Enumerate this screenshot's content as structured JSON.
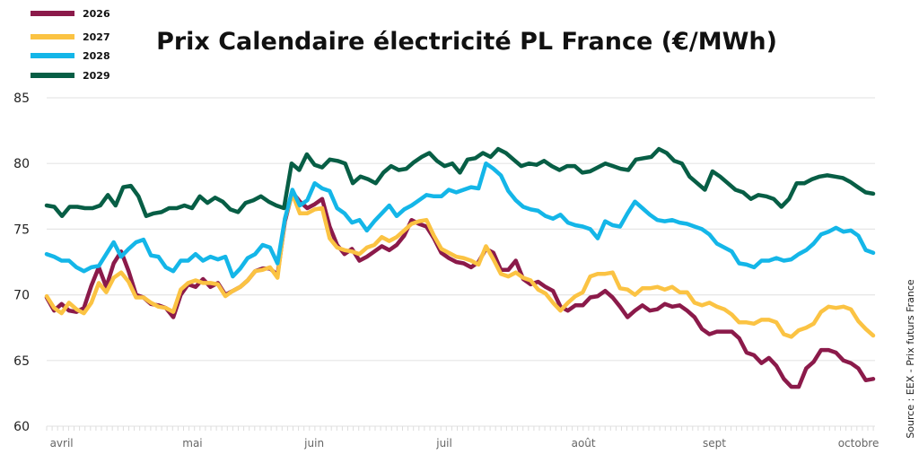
{
  "chart_data": {
    "type": "line",
    "title": "Prix Calendaire électricité PL France (€/MWh)",
    "xlabel": "",
    "ylabel": "",
    "ylim": [
      60,
      85
    ],
    "yticks": [
      60,
      65,
      70,
      75,
      80,
      85
    ],
    "ytick_labels": [
      "60",
      "65",
      "70",
      "75",
      "80",
      "85"
    ],
    "xtick_labels": [
      "avril",
      "mai",
      "juin",
      "juil",
      "août",
      "sept",
      "octobre"
    ],
    "xtick_positions": [
      0.018,
      0.176,
      0.323,
      0.48,
      0.648,
      0.806,
      0.98
    ],
    "grid": true,
    "legend_position": "top-left",
    "source": "Source : EEX - Prix futurs France",
    "series": [
      {
        "name": "2026",
        "color": "#8B1A4A",
        "values": [
          69.8,
          68.8,
          69.3,
          68.8,
          68.7,
          69.0,
          70.7,
          72.1,
          70.6,
          72.4,
          73.3,
          71.8,
          70.0,
          69.8,
          69.3,
          69.2,
          69.0,
          68.3,
          70.0,
          70.8,
          70.6,
          71.2,
          70.6,
          70.9,
          70.0,
          70.3,
          70.6,
          71.1,
          71.8,
          72.0,
          72.0,
          71.5,
          75.6,
          77.8,
          77.1,
          76.6,
          76.9,
          77.3,
          75.2,
          73.8,
          73.1,
          73.5,
          72.6,
          72.9,
          73.3,
          73.7,
          73.4,
          73.8,
          74.5,
          75.7,
          75.4,
          75.2,
          74.3,
          73.2,
          72.8,
          72.5,
          72.4,
          72.1,
          72.5,
          73.5,
          73.2,
          71.9,
          71.9,
          72.6,
          71.2,
          70.8,
          71.0,
          70.6,
          70.3,
          69.1,
          68.8,
          69.2,
          69.2,
          69.8,
          69.9,
          70.3,
          69.8,
          69.1,
          68.3,
          68.8,
          69.2,
          68.8,
          68.9,
          69.3,
          69.1,
          69.2,
          68.8,
          68.3,
          67.4,
          67.0,
          67.2,
          67.2,
          67.2,
          66.7,
          65.6,
          65.4,
          64.8,
          65.2,
          64.6,
          63.6,
          63.0,
          63.0,
          64.4,
          64.9,
          65.8,
          65.8,
          65.6,
          65.0,
          64.8,
          64.4,
          63.5,
          63.6
        ]
      },
      {
        "name": "2027",
        "color": "#FBC343",
        "values": [
          69.9,
          69.0,
          68.6,
          69.4,
          68.9,
          68.6,
          69.4,
          70.9,
          70.2,
          71.3,
          71.7,
          71.0,
          69.8,
          69.8,
          69.4,
          69.1,
          69.0,
          68.7,
          70.4,
          70.9,
          71.1,
          70.9,
          70.9,
          70.8,
          69.9,
          70.3,
          70.6,
          71.1,
          71.8,
          71.9,
          72.1,
          71.3,
          75.8,
          77.7,
          76.2,
          76.2,
          76.5,
          76.6,
          74.3,
          73.6,
          73.4,
          73.3,
          73.1,
          73.6,
          73.8,
          74.4,
          74.1,
          74.4,
          74.9,
          75.4,
          75.6,
          75.7,
          74.5,
          73.5,
          73.2,
          72.9,
          72.8,
          72.6,
          72.3,
          73.7,
          72.7,
          71.6,
          71.4,
          71.7,
          71.3,
          71.1,
          70.4,
          70.1,
          69.4,
          68.8,
          69.4,
          69.9,
          70.2,
          71.4,
          71.6,
          71.6,
          71.7,
          70.5,
          70.4,
          70.0,
          70.5,
          70.5,
          70.6,
          70.4,
          70.6,
          70.2,
          70.2,
          69.4,
          69.2,
          69.4,
          69.1,
          68.9,
          68.5,
          67.9,
          67.9,
          67.8,
          68.1,
          68.1,
          67.9,
          67.0,
          66.8,
          67.3,
          67.5,
          67.8,
          68.7,
          69.1,
          69.0,
          69.1,
          68.9,
          68.0,
          67.4,
          66.9
        ]
      },
      {
        "name": "2028",
        "color": "#14B6E8",
        "values": [
          73.1,
          72.9,
          72.6,
          72.6,
          72.1,
          71.8,
          72.1,
          72.2,
          73.1,
          74.0,
          72.9,
          73.5,
          74.0,
          74.2,
          73.0,
          72.9,
          72.1,
          71.8,
          72.6,
          72.6,
          73.1,
          72.6,
          72.9,
          72.7,
          72.9,
          71.4,
          72.0,
          72.8,
          73.1,
          73.8,
          73.6,
          72.4,
          75.8,
          78.0,
          76.8,
          77.2,
          78.5,
          78.1,
          77.9,
          76.6,
          76.2,
          75.5,
          75.7,
          74.9,
          75.6,
          76.2,
          76.8,
          76.0,
          76.5,
          76.8,
          77.2,
          77.6,
          77.5,
          77.5,
          78.0,
          77.8,
          78.0,
          78.2,
          78.1,
          80.0,
          79.6,
          79.1,
          77.9,
          77.2,
          76.7,
          76.5,
          76.4,
          76.0,
          75.8,
          76.1,
          75.5,
          75.3,
          75.2,
          75.0,
          74.3,
          75.6,
          75.3,
          75.2,
          76.2,
          77.1,
          76.6,
          76.1,
          75.7,
          75.6,
          75.7,
          75.5,
          75.4,
          75.2,
          75.0,
          74.6,
          73.9,
          73.6,
          73.3,
          72.4,
          72.3,
          72.1,
          72.6,
          72.6,
          72.8,
          72.6,
          72.7,
          73.1,
          73.4,
          73.9,
          74.6,
          74.8,
          75.1,
          74.8,
          74.9,
          74.5,
          73.4,
          73.2
        ]
      },
      {
        "name": "2029",
        "color": "#075E45",
        "values": [
          76.8,
          76.7,
          76.0,
          76.7,
          76.7,
          76.6,
          76.6,
          76.8,
          77.6,
          76.8,
          78.2,
          78.3,
          77.5,
          76.0,
          76.2,
          76.3,
          76.6,
          76.6,
          76.8,
          76.6,
          77.5,
          77.0,
          77.4,
          77.1,
          76.5,
          76.3,
          77.0,
          77.2,
          77.5,
          77.1,
          76.8,
          76.6,
          80.0,
          79.5,
          80.7,
          79.9,
          79.7,
          80.3,
          80.2,
          80.0,
          78.5,
          79.0,
          78.8,
          78.5,
          79.3,
          79.8,
          79.5,
          79.6,
          80.1,
          80.5,
          80.8,
          80.2,
          79.8,
          80.0,
          79.3,
          80.3,
          80.4,
          80.8,
          80.5,
          81.1,
          80.8,
          80.3,
          79.8,
          80.0,
          79.9,
          80.2,
          79.8,
          79.5,
          79.8,
          79.8,
          79.3,
          79.4,
          79.7,
          80.0,
          79.8,
          79.6,
          79.5,
          80.3,
          80.4,
          80.5,
          81.1,
          80.8,
          80.2,
          80.0,
          79.0,
          78.5,
          78.0,
          79.4,
          79.0,
          78.5,
          78.0,
          77.8,
          77.3,
          77.6,
          77.5,
          77.3,
          76.7,
          77.3,
          78.5,
          78.5,
          78.8,
          79.0,
          79.1,
          79.0,
          78.9,
          78.6,
          78.2,
          77.8,
          77.7
        ]
      }
    ]
  }
}
